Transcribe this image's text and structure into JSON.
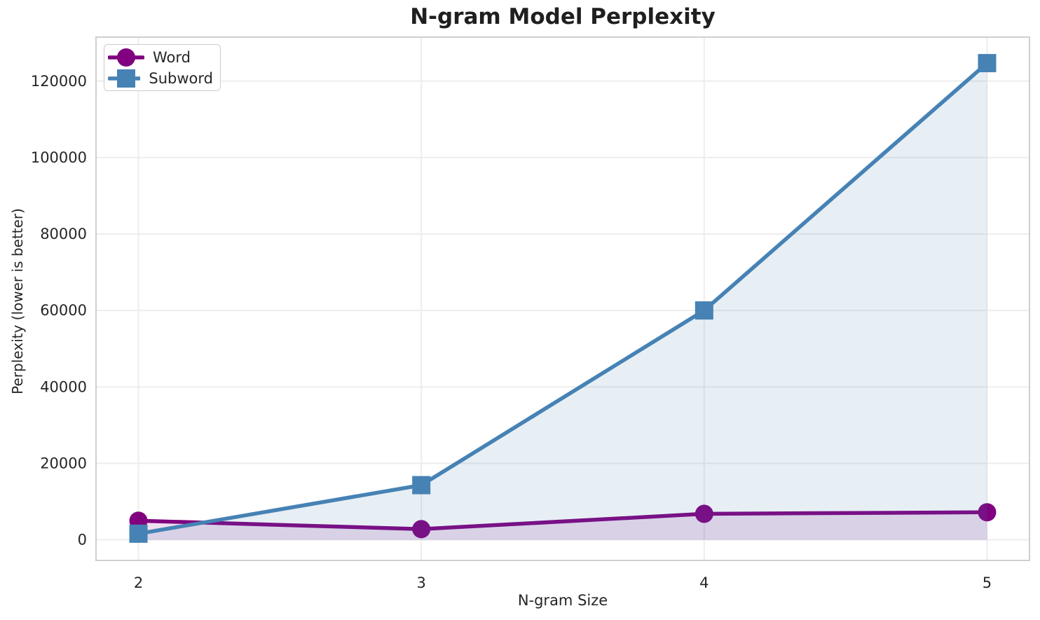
{
  "chart_data": {
    "type": "line",
    "title": "N-gram Model Perplexity",
    "xlabel": "N-gram Size",
    "ylabel": "Perplexity (lower is better)",
    "x": [
      2,
      3,
      4,
      5
    ],
    "series": [
      {
        "name": "Word",
        "color": "#800080",
        "fill_color": "rgba(128,0,128,0.13)",
        "marker": "circle",
        "values": [
          5000,
          2800,
          6800,
          7200
        ]
      },
      {
        "name": "Subword",
        "color": "#4682b4",
        "fill_color": "rgba(70,130,180,0.13)",
        "marker": "square",
        "values": [
          1600,
          14300,
          60000,
          124700
        ]
      }
    ],
    "xticks": [
      2,
      3,
      4,
      5
    ],
    "yticks": [
      0,
      20000,
      40000,
      60000,
      80000,
      100000,
      120000
    ],
    "xlim": [
      1.85,
      5.15
    ],
    "ylim": [
      -5400,
      131500
    ],
    "grid": true,
    "area_fill_to": 0,
    "legend_position": "upper left",
    "colors": {
      "grid": "#ededed",
      "spine": "#cfcfcf",
      "text": "#262626",
      "background": "#ffffff"
    }
  }
}
